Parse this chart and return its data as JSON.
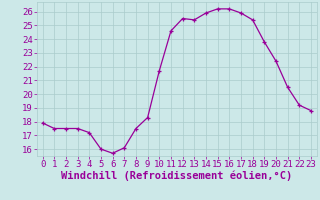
{
  "x": [
    0,
    1,
    2,
    3,
    4,
    5,
    6,
    7,
    8,
    9,
    10,
    11,
    12,
    13,
    14,
    15,
    16,
    17,
    18,
    19,
    20,
    21,
    22,
    23
  ],
  "y": [
    17.9,
    17.5,
    17.5,
    17.5,
    17.2,
    16.0,
    15.7,
    16.1,
    17.5,
    18.3,
    21.7,
    24.6,
    25.5,
    25.4,
    25.9,
    26.2,
    26.2,
    25.9,
    25.4,
    23.8,
    22.4,
    20.5,
    19.2,
    18.8
  ],
  "line_color": "#990099",
  "marker": "+",
  "bg_color": "#cce8e8",
  "grid_color": "#aacccc",
  "xlabel": "Windchill (Refroidissement éolien,°C)",
  "xlabel_color": "#990099",
  "tick_color": "#990099",
  "ylim": [
    15.5,
    26.7
  ],
  "xlim": [
    -0.5,
    23.5
  ],
  "yticks": [
    16,
    17,
    18,
    19,
    20,
    21,
    22,
    23,
    24,
    25,
    26
  ],
  "xticks": [
    0,
    1,
    2,
    3,
    4,
    5,
    6,
    7,
    8,
    9,
    10,
    11,
    12,
    13,
    14,
    15,
    16,
    17,
    18,
    19,
    20,
    21,
    22,
    23
  ],
  "font_size": 6.5,
  "xlabel_font_size": 7.5,
  "marker_size": 3,
  "line_width": 0.9
}
